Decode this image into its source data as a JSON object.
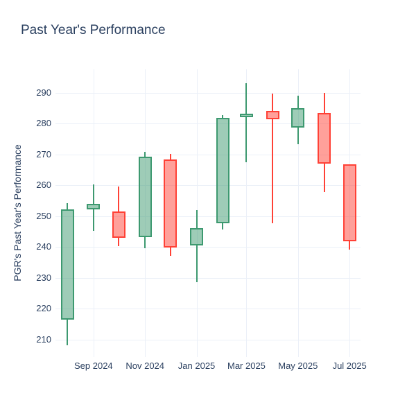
{
  "title": "Past Year's Performance",
  "chart_data": {
    "type": "candlestick",
    "title": "Past Year's Performance",
    "xlabel": "",
    "ylabel": "PGR's Past Year's Performance",
    "legend": "none",
    "grid": true,
    "background": "#ffffff",
    "grid_color": "#ebf0f8",
    "text_color": "#2a3f5f",
    "increasing_color": "#3D9970",
    "decreasing_color": "#FF4136",
    "increasing_fill": "rgba(61,153,112,0.5)",
    "decreasing_fill": "rgba(255,65,54,0.5)",
    "ylim": [
      204.3,
      297.6
    ],
    "xlim_dates": [
      "2024-07-18",
      "2025-07-14"
    ],
    "y_ticks": [
      210,
      220,
      230,
      240,
      250,
      260,
      270,
      280,
      290
    ],
    "x_ticks": [
      {
        "label": "Sep 2024",
        "date": "2024-09-01"
      },
      {
        "label": "Nov 2024",
        "date": "2024-11-01"
      },
      {
        "label": "Jan 2025",
        "date": "2025-01-01"
      },
      {
        "label": "Mar 2025",
        "date": "2025-03-01"
      },
      {
        "label": "May 2025",
        "date": "2025-05-01"
      },
      {
        "label": "Jul 2025",
        "date": "2025-07-01"
      }
    ],
    "series": [
      {
        "date": "2024-08-01",
        "open": 216.5,
        "high": 254.2,
        "low": 208.1,
        "close": 252.1
      },
      {
        "date": "2024-09-01",
        "open": 252.1,
        "high": 260.3,
        "low": 245.2,
        "close": 254.0
      },
      {
        "date": "2024-10-01",
        "open": 251.6,
        "high": 259.6,
        "low": 240.3,
        "close": 243.0
      },
      {
        "date": "2024-11-01",
        "open": 243.2,
        "high": 270.8,
        "low": 239.6,
        "close": 269.2
      },
      {
        "date": "2024-12-01",
        "open": 268.4,
        "high": 270.1,
        "low": 237.1,
        "close": 239.8
      },
      {
        "date": "2025-01-01",
        "open": 240.6,
        "high": 252.0,
        "low": 228.6,
        "close": 246.1
      },
      {
        "date": "2025-02-01",
        "open": 247.7,
        "high": 282.8,
        "low": 245.7,
        "close": 281.9
      },
      {
        "date": "2025-03-01",
        "open": 282.0,
        "high": 293.0,
        "low": 267.4,
        "close": 283.2
      },
      {
        "date": "2025-04-01",
        "open": 284.0,
        "high": 289.8,
        "low": 247.8,
        "close": 281.5
      },
      {
        "date": "2025-05-01",
        "open": 278.8,
        "high": 289.1,
        "low": 273.3,
        "close": 285.0
      },
      {
        "date": "2025-06-01",
        "open": 283.4,
        "high": 290.0,
        "low": 257.8,
        "close": 267.0
      },
      {
        "date": "2025-07-01",
        "open": 266.8,
        "high": 266.8,
        "low": 239.1,
        "close": 241.8
      }
    ]
  }
}
